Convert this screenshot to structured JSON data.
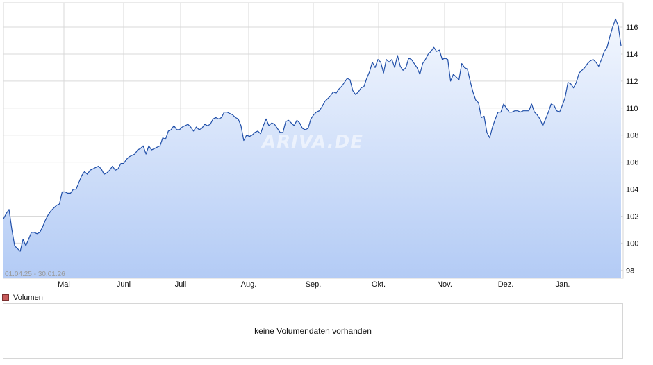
{
  "chart_data": {
    "type": "area",
    "date_range_label": "01.04.25 - 30.01.26",
    "x_labels": [
      "Mai",
      "Juni",
      "Juli",
      "Aug.",
      "Sep.",
      "Okt.",
      "Nov.",
      "Dez.",
      "Jan."
    ],
    "y_ticks": [
      98,
      100,
      102,
      104,
      106,
      108,
      110,
      112,
      114,
      116
    ],
    "ylim": [
      97.4,
      117.8
    ],
    "grid": true,
    "watermark": "ARIVA.DE",
    "series": [
      {
        "values": [
          101.8,
          102.2,
          102.5,
          101.0,
          99.8,
          99.6,
          99.4,
          100.3,
          99.8,
          100.3,
          100.8,
          100.8,
          100.7,
          100.8,
          101.2,
          101.7,
          102.1,
          102.4,
          102.6,
          102.8,
          102.9,
          103.8,
          103.8,
          103.7,
          103.7,
          104.0,
          104.0,
          104.5,
          105.0,
          105.3,
          105.1,
          105.4,
          105.5,
          105.6,
          105.7,
          105.5,
          105.1,
          105.2,
          105.4,
          105.7,
          105.4,
          105.5,
          105.9,
          105.9,
          106.2,
          106.4,
          106.5,
          106.6,
          106.9,
          107.0,
          107.2,
          106.6,
          107.2,
          106.9,
          107.0,
          107.1,
          107.2,
          107.8,
          107.7,
          108.3,
          108.4,
          108.7,
          108.4,
          108.4,
          108.6,
          108.7,
          108.8,
          108.6,
          108.3,
          108.6,
          108.4,
          108.5,
          108.8,
          108.7,
          108.8,
          109.2,
          109.3,
          109.2,
          109.3,
          109.7,
          109.7,
          109.6,
          109.5,
          109.3,
          109.2,
          108.7,
          107.6,
          108.0,
          107.9,
          108.0,
          108.2,
          108.3,
          108.1,
          108.7,
          109.2,
          108.7,
          108.9,
          108.8,
          108.5,
          108.2,
          108.2,
          109.0,
          109.1,
          108.9,
          108.7,
          109.1,
          108.9,
          108.5,
          108.4,
          108.5,
          109.2,
          109.5,
          109.7,
          109.8,
          110.1,
          110.5,
          110.7,
          110.9,
          111.2,
          111.1,
          111.4,
          111.6,
          111.9,
          112.2,
          112.1,
          111.3,
          111.0,
          111.2,
          111.5,
          111.6,
          112.2,
          112.7,
          113.4,
          113.0,
          113.6,
          113.4,
          112.6,
          113.6,
          113.4,
          113.6,
          113.0,
          113.9,
          113.1,
          112.8,
          113.0,
          113.7,
          113.6,
          113.3,
          113.0,
          112.5,
          113.3,
          113.6,
          114.0,
          114.2,
          114.5,
          114.2,
          114.3,
          113.6,
          113.7,
          113.6,
          112.0,
          112.5,
          112.3,
          112.1,
          113.3,
          113.0,
          112.9,
          112.0,
          111.2,
          110.6,
          110.4,
          109.3,
          109.4,
          108.2,
          107.8,
          108.6,
          109.2,
          109.7,
          109.7,
          110.3,
          110.0,
          109.7,
          109.7,
          109.8,
          109.8,
          109.7,
          109.8,
          109.8,
          109.8,
          110.3,
          109.7,
          109.5,
          109.2,
          108.7,
          109.2,
          109.7,
          110.3,
          110.2,
          109.8,
          109.7,
          110.2,
          110.8,
          111.9,
          111.8,
          111.5,
          111.9,
          112.6,
          112.8,
          113.0,
          113.3,
          113.5,
          113.6,
          113.4,
          113.1,
          113.6,
          114.2,
          114.5,
          115.3,
          116.0,
          116.6,
          116.1,
          114.6
        ]
      }
    ]
  },
  "volume": {
    "legend_label": "Volumen",
    "empty_message": "keine Volumendaten vorhanden",
    "swatch_color": "#c75b5b"
  },
  "colors": {
    "line": "#1f4ea8",
    "fill_top": "#f3f7fe",
    "fill_bottom": "#b3cbf5",
    "grid": "#d9d9d9"
  }
}
